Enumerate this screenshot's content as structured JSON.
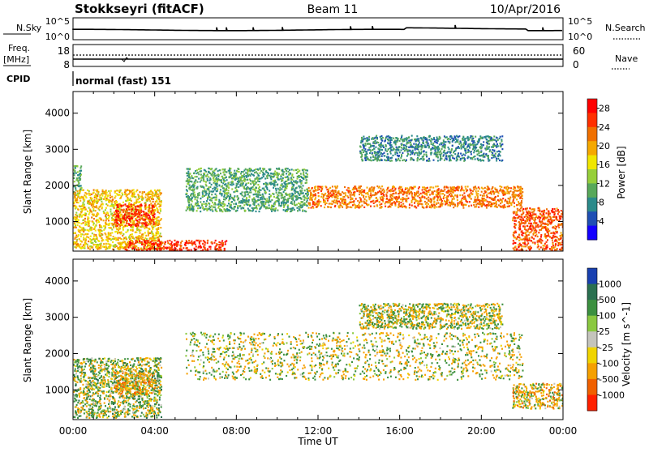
{
  "header": {
    "station": "Stokkseyri (fitACF)",
    "beam": "Beam 11",
    "date": "10/Apr/2016"
  },
  "noise_panel": {
    "left_label": "N.Sky",
    "right_label": "N.Search",
    "tick_top": "10^5",
    "tick_bottom": "10^0"
  },
  "freq_panel": {
    "left_label_line1": "Freq.",
    "left_label_line2": "[MHz]",
    "right_label": "Nave",
    "left_tick_top": "18",
    "left_tick_bottom": "8",
    "right_tick_top": "60",
    "right_tick_bottom": "0"
  },
  "cpid": {
    "label": "CPID",
    "value": "normal (fast) 151"
  },
  "x_axis": {
    "label": "Time UT",
    "ticks": [
      "00:00",
      "04:00",
      "08:00",
      "12:00",
      "16:00",
      "20:00",
      "00:00"
    ]
  },
  "chart_data": [
    {
      "type": "heatmap",
      "panel": "power",
      "xlabel": "Time UT",
      "ylabel": "Slant Range [km]",
      "x_ticks": [
        "00:00",
        "04:00",
        "08:00",
        "12:00",
        "16:00",
        "20:00",
        "00:00"
      ],
      "xlim_hours": [
        0,
        24
      ],
      "y_ticks": [
        1000,
        2000,
        3000,
        4000
      ],
      "ylim": [
        180,
        4600
      ],
      "colorbar": {
        "label": "Power [dB]",
        "ticks": [
          "4",
          "8",
          "12",
          "16",
          "20",
          "24",
          "28"
        ],
        "range": [
          0,
          30
        ],
        "colors": [
          "#1400ff",
          "#1f4fb4",
          "#2b8a8a",
          "#58a85a",
          "#96cf3a",
          "#f0e600",
          "#f5a800",
          "#f07000",
          "#ff3000",
          "#ff0000"
        ]
      },
      "echo_regions": [
        {
          "t_start": 0.0,
          "t_end": 0.4,
          "r_min": 1700,
          "r_max": 2600,
          "power_db": 10
        },
        {
          "t_start": 0.0,
          "t_end": 4.3,
          "r_min": 250,
          "r_max": 1900,
          "power_db": 18
        },
        {
          "t_start": 2.0,
          "t_end": 4.0,
          "r_min": 900,
          "r_max": 1500,
          "power_db": 26
        },
        {
          "t_start": 2.5,
          "t_end": 7.5,
          "r_min": 200,
          "r_max": 500,
          "power_db": 26
        },
        {
          "t_start": 5.5,
          "t_end": 11.5,
          "r_min": 1300,
          "r_max": 2500,
          "power_db": 10
        },
        {
          "t_start": 11.5,
          "t_end": 22.0,
          "r_min": 1400,
          "r_max": 2000,
          "power_db": 22
        },
        {
          "t_start": 14.0,
          "t_end": 21.0,
          "r_min": 2700,
          "r_max": 3400,
          "power_db": 8
        },
        {
          "t_start": 21.5,
          "t_end": 24.0,
          "r_min": 200,
          "r_max": 1400,
          "power_db": 24
        }
      ]
    },
    {
      "type": "heatmap",
      "panel": "velocity",
      "xlabel": "Time UT",
      "ylabel": "Slant Range [km]",
      "x_ticks": [
        "00:00",
        "04:00",
        "08:00",
        "12:00",
        "16:00",
        "20:00",
        "00:00"
      ],
      "xlim_hours": [
        0,
        24
      ],
      "y_ticks": [
        1000,
        2000,
        3000,
        4000
      ],
      "ylim": [
        180,
        4600
      ],
      "ground_scatter_color": "#c4c4bc",
      "colorbar": {
        "label": "Velocity [m s^-1]",
        "ticks": [
          "1000",
          "500",
          "100",
          "25",
          "-25",
          "-100",
          "-500",
          "-1000"
        ],
        "colors": [
          "#1840b0",
          "#2a7050",
          "#3c9040",
          "#8ac840",
          "#c4c4bc",
          "#f0d400",
          "#f5a000",
          "#f06000",
          "#ff2000"
        ]
      },
      "echo_regions": [
        {
          "t_start": 0.0,
          "t_end": 4.3,
          "r_min": 250,
          "r_max": 1900,
          "velocity": 100
        },
        {
          "t_start": 2.0,
          "t_end": 4.0,
          "r_min": 900,
          "r_max": 1500,
          "velocity": -300
        },
        {
          "t_start": 5.5,
          "t_end": 22.0,
          "r_min": 1300,
          "r_max": 2600,
          "velocity": 0
        },
        {
          "t_start": 14.0,
          "t_end": 21.0,
          "r_min": 2700,
          "r_max": 3400,
          "velocity": 0
        },
        {
          "t_start": 21.5,
          "t_end": 24.0,
          "r_min": 500,
          "r_max": 1200,
          "velocity": -200
        }
      ]
    }
  ]
}
